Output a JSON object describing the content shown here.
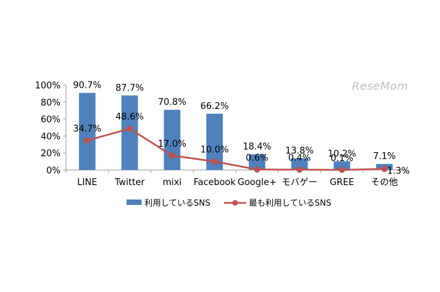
{
  "watermark": "ReseMom",
  "colors": {
    "bar": "#4f81bd",
    "line": "#c0504d",
    "axis": "#9a9a9a",
    "text": "#000000"
  },
  "chart_data": {
    "type": "bar",
    "categories": [
      "LINE",
      "Twitter",
      "mixi",
      "Facebook",
      "Google+",
      "モバゲー",
      "GREE",
      "その他"
    ],
    "series": [
      {
        "name": "利用しているSNS",
        "type": "bar",
        "values": [
          90.7,
          87.7,
          70.8,
          66.2,
          18.4,
          13.8,
          10.2,
          7.1
        ],
        "labels": [
          "90.7%",
          "87.7%",
          "70.8%",
          "66.2%",
          "18.4%",
          "13.8%",
          "10.2%",
          "7.1%"
        ]
      },
      {
        "name": "最も利用しているSNS",
        "type": "line",
        "values": [
          34.7,
          48.6,
          17.0,
          10.0,
          0.6,
          0.4,
          0.1,
          1.3
        ],
        "labels": [
          "34.7%",
          "48.6%",
          "17.0%",
          "10.0%",
          "0.6%",
          "0.4%",
          "0.1%",
          "1.3%"
        ]
      }
    ],
    "ylim": [
      0,
      100
    ],
    "yticks": [
      "0%",
      "20%",
      "40%",
      "60%",
      "80%",
      "100%"
    ],
    "grid": false,
    "legend": "bottom"
  }
}
